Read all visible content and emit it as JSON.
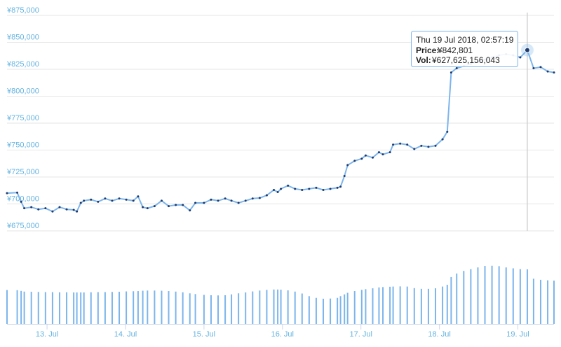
{
  "chart_data": {
    "type": "line",
    "x": [
      12.49,
      12.62,
      12.67,
      12.71,
      12.8,
      12.89,
      12.98,
      13.07,
      13.16,
      13.25,
      13.34,
      13.38,
      13.43,
      13.47,
      13.56,
      13.65,
      13.74,
      13.83,
      13.92,
      14.01,
      14.1,
      14.16,
      14.22,
      14.28,
      14.37,
      14.46,
      14.55,
      14.64,
      14.73,
      14.82,
      14.89,
      15.0,
      15.09,
      15.18,
      15.27,
      15.35,
      15.44,
      15.53,
      15.62,
      15.71,
      15.8,
      15.89,
      15.94,
      15.98,
      16.07,
      16.16,
      16.25,
      16.34,
      16.43,
      16.52,
      16.61,
      16.7,
      16.74,
      16.79,
      16.83,
      16.92,
      17.01,
      17.06,
      17.15,
      17.23,
      17.28,
      17.37,
      17.41,
      17.5,
      17.59,
      17.68,
      17.77,
      17.86,
      17.95,
      18.04,
      18.1,
      18.15,
      18.22,
      18.31,
      18.4,
      18.49,
      18.58,
      18.67,
      18.76,
      18.85,
      18.94,
      19.03,
      19.12,
      19.2,
      19.29,
      19.38,
      19.46
    ],
    "values": [
      710000,
      710500,
      702000,
      696000,
      697000,
      695000,
      696000,
      693000,
      697000,
      695000,
      694500,
      693000,
      701000,
      703000,
      704000,
      702000,
      705000,
      703000,
      705000,
      704000,
      703000,
      707000,
      697000,
      696000,
      698000,
      703000,
      698000,
      699000,
      699000,
      694000,
      701000,
      701000,
      704000,
      703000,
      705000,
      703000,
      701000,
      703000,
      705000,
      705500,
      708000,
      713000,
      711000,
      714000,
      717000,
      714000,
      713000,
      714000,
      715000,
      713000,
      714000,
      715000,
      716000,
      726000,
      736000,
      740000,
      742000,
      745000,
      743000,
      748000,
      746000,
      748000,
      755000,
      756000,
      755000,
      751000,
      754000,
      753000,
      754000,
      760000,
      767000,
      822000,
      826000,
      828000,
      830000,
      832000,
      834000,
      836000,
      838000,
      839000,
      838000,
      836000,
      842801,
      826000,
      827000,
      823000,
      822000
    ],
    "volume": [
      390000000000,
      388000000000,
      380000000000,
      372000000000,
      370000000000,
      368000000000,
      366000000000,
      366000000000,
      364000000000,
      364000000000,
      362000000000,
      362000000000,
      362000000000,
      362000000000,
      364000000000,
      366000000000,
      366000000000,
      368000000000,
      370000000000,
      374000000000,
      376000000000,
      378000000000,
      382000000000,
      384000000000,
      384000000000,
      382000000000,
      378000000000,
      372000000000,
      364000000000,
      352000000000,
      344000000000,
      334000000000,
      330000000000,
      328000000000,
      330000000000,
      340000000000,
      352000000000,
      362000000000,
      374000000000,
      384000000000,
      392000000000,
      396000000000,
      396000000000,
      394000000000,
      386000000000,
      372000000000,
      350000000000,
      320000000000,
      300000000000,
      290000000000,
      292000000000,
      300000000000,
      320000000000,
      340000000000,
      358000000000,
      378000000000,
      392000000000,
      400000000000,
      410000000000,
      420000000000,
      424000000000,
      428000000000,
      430000000000,
      432000000000,
      430000000000,
      412000000000,
      404000000000,
      404000000000,
      410000000000,
      430000000000,
      450000000000,
      540000000000,
      580000000000,
      610000000000,
      630000000000,
      650000000000,
      668000000000,
      670000000000,
      665000000000,
      650000000000,
      640000000000,
      630000000000,
      627625156043,
      520000000000,
      508000000000,
      502000000000,
      498000000000
    ],
    "color": "#7cb5ec",
    "marker_color": "#1f3a6b",
    "xlim": [
      12.49,
      19.46
    ],
    "xticks": [
      {
        "value": 13,
        "label": "13. Jul"
      },
      {
        "value": 14,
        "label": "14. Jul"
      },
      {
        "value": 15,
        "label": "15. Jul"
      },
      {
        "value": 16,
        "label": "16. Jul"
      },
      {
        "value": 17,
        "label": "17. Jul"
      },
      {
        "value": 18,
        "label": "18. Jul"
      },
      {
        "value": 19,
        "label": "19. Jul"
      }
    ],
    "ylim": [
      675000,
      875000
    ],
    "yticks": [
      {
        "value": 675000,
        "label": "¥675,000"
      },
      {
        "value": 700000,
        "label": "¥700,000"
      },
      {
        "value": 725000,
        "label": "¥725,000"
      },
      {
        "value": 750000,
        "label": "¥750,000"
      },
      {
        "value": 775000,
        "label": "¥775,000"
      },
      {
        "value": 800000,
        "label": "¥800,000"
      },
      {
        "value": 825000,
        "label": "¥825,000"
      },
      {
        "value": 850000,
        "label": "¥850,000"
      },
      {
        "value": 875000,
        "label": "¥875,000"
      }
    ],
    "y2lim": [
      0,
      950000000000
    ],
    "grid": true,
    "tooltip": {
      "index": 82,
      "date": "Thu 19 Jul 2018, 02:57:19",
      "price_label": "Price:",
      "price": "¥842,801",
      "vol_label": "Vol:",
      "volume": "¥627,625,156,043"
    }
  }
}
